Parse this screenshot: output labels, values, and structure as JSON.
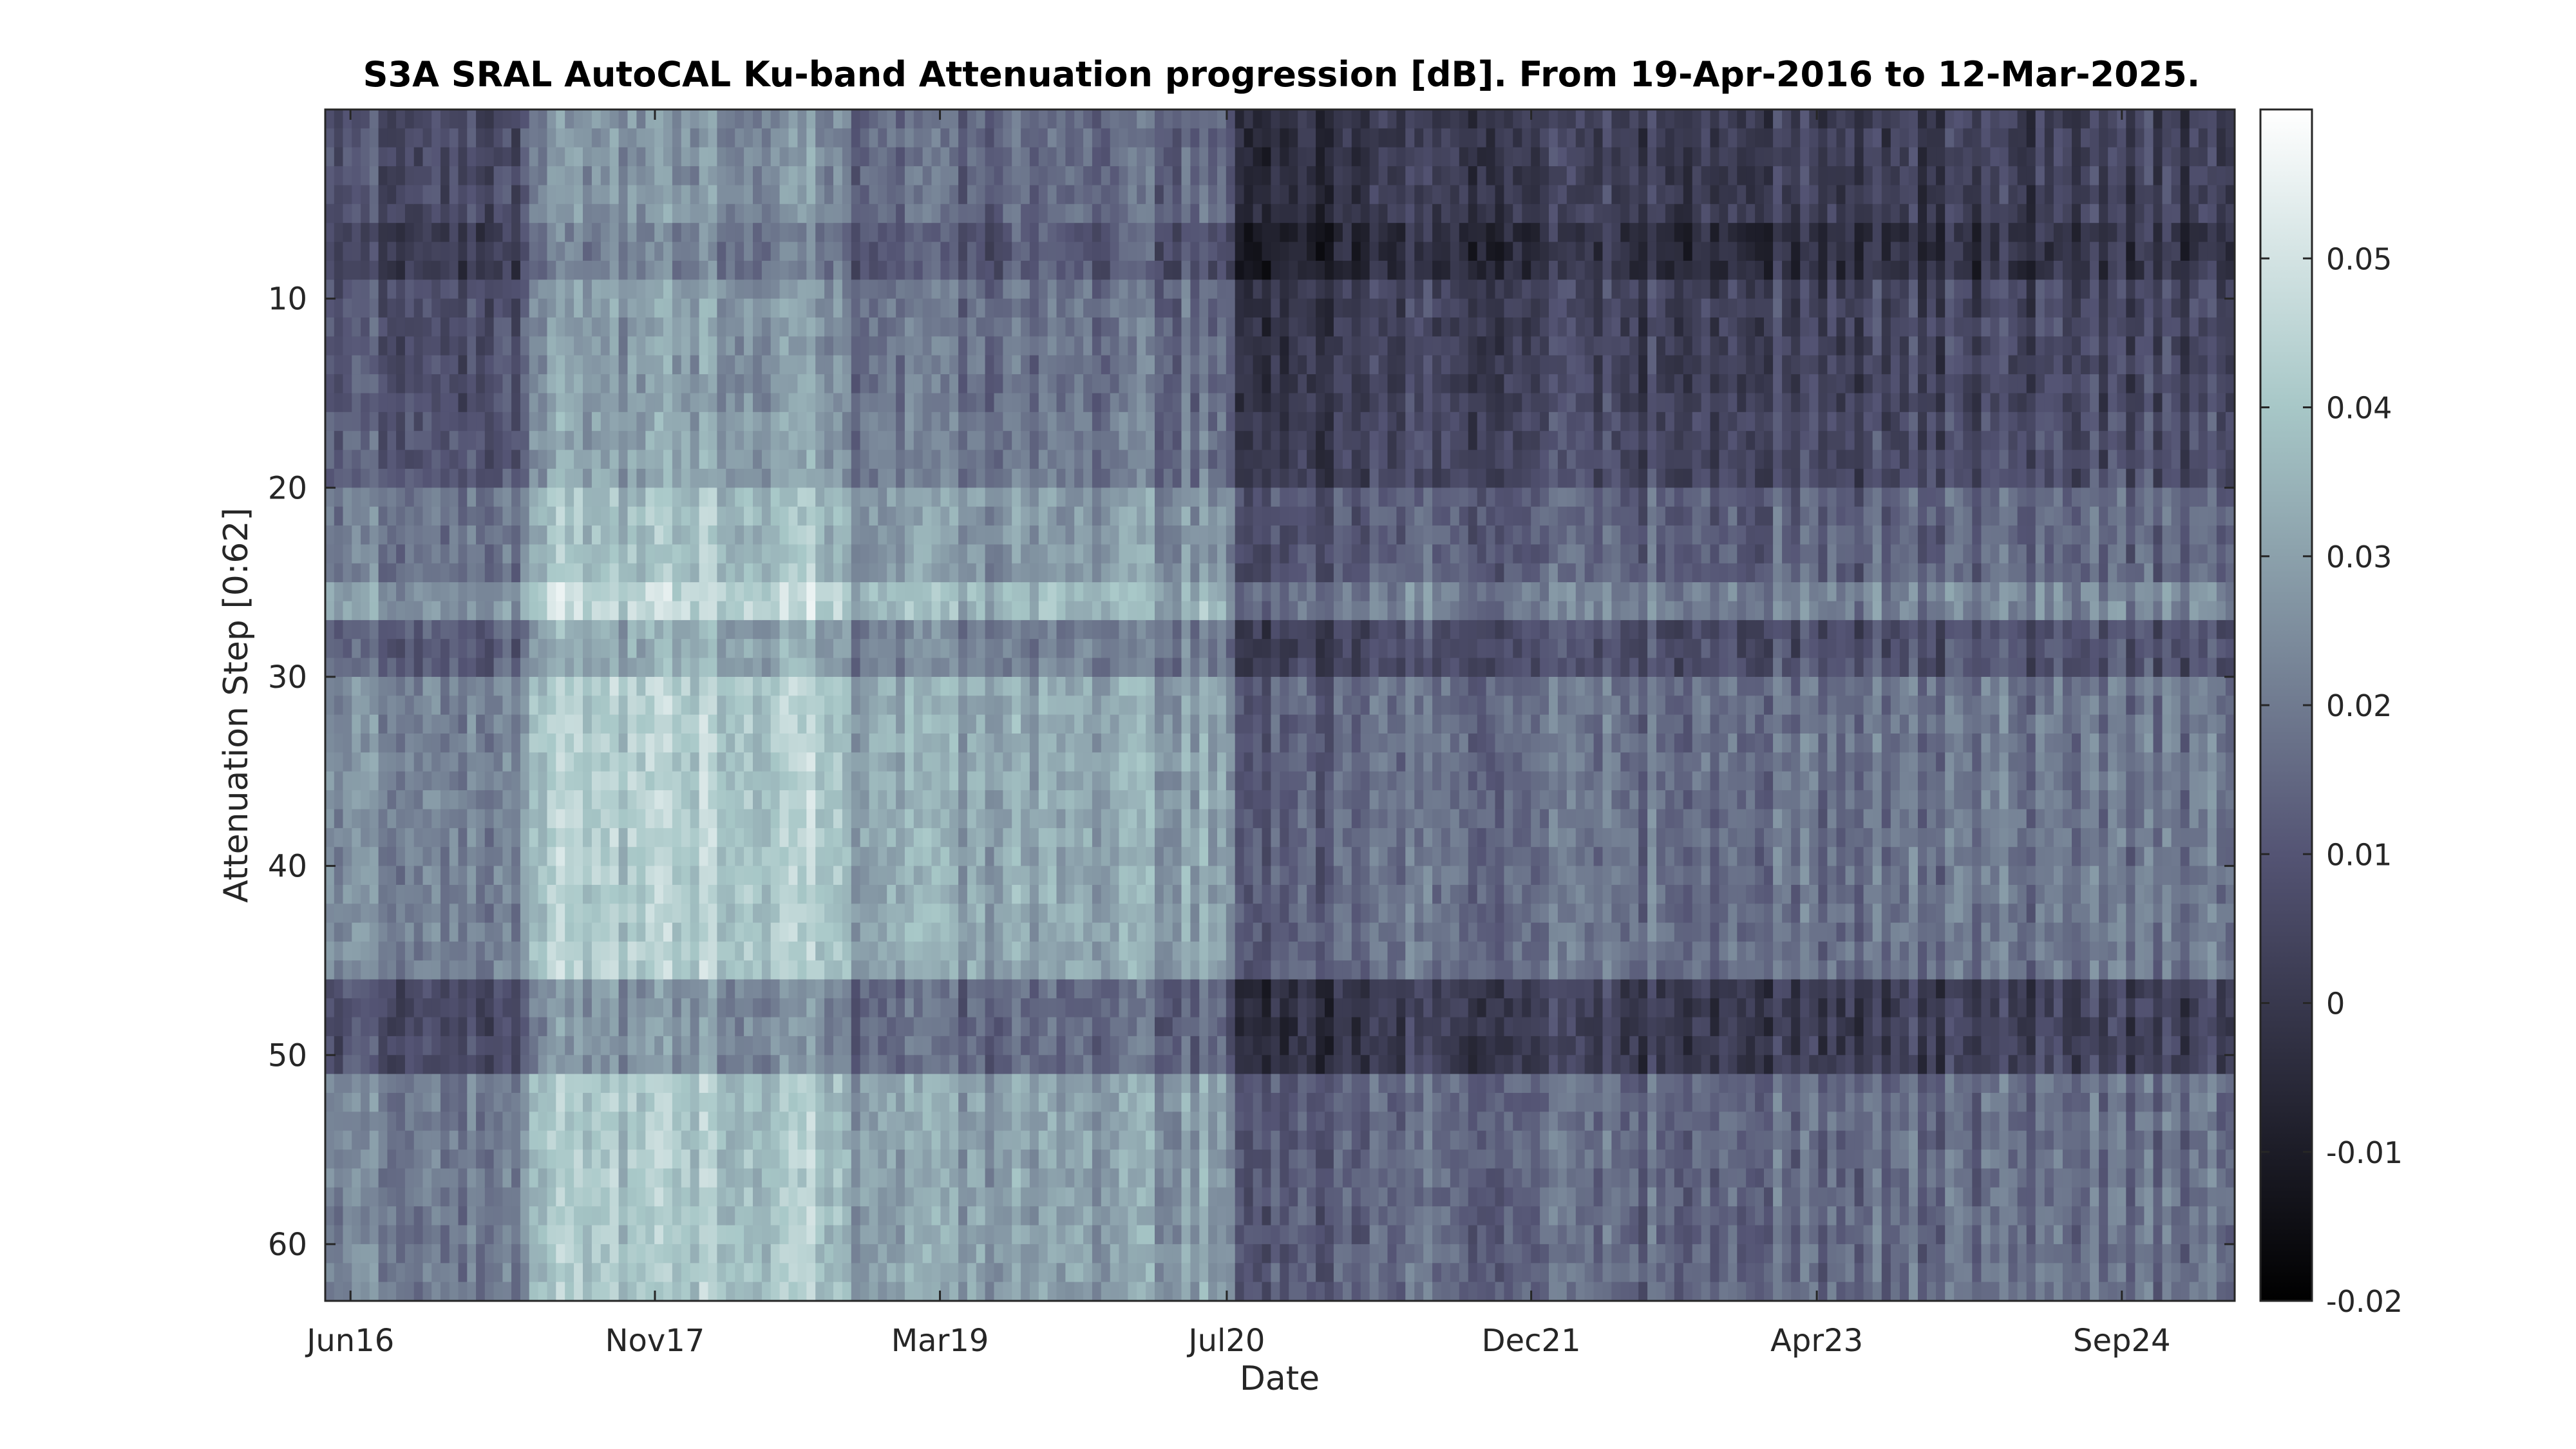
{
  "chart_data": {
    "type": "heatmap",
    "title": "S3A SRAL AutoCAL Ku-band Attenuation progression [dB]. From 19-Apr-2016 to 12-Mar-2025.",
    "xlabel": "Date",
    "ylabel": "Attenuation Step [0:62]",
    "x_range": [
      "2016-04-19",
      "2025-03-12"
    ],
    "x_ticks": [
      {
        "date": "2016-06-01",
        "label": "Jun16"
      },
      {
        "date": "2017-11-01",
        "label": "Nov17"
      },
      {
        "date": "2019-03-01",
        "label": "Mar19"
      },
      {
        "date": "2020-07-01",
        "label": "Jul20"
      },
      {
        "date": "2021-12-01",
        "label": "Dec21"
      },
      {
        "date": "2023-04-01",
        "label": "Apr23"
      },
      {
        "date": "2024-09-01",
        "label": "Sep24"
      }
    ],
    "y_range": [
      0,
      63
    ],
    "y_reversed": true,
    "y_ticks": [
      10,
      20,
      30,
      40,
      50,
      60
    ],
    "colormap": "bone",
    "colorbar": {
      "range": [
        -0.02,
        0.06
      ],
      "ticks": [
        -0.02,
        -0.01,
        0,
        0.01,
        0.02,
        0.03,
        0.04,
        0.05
      ]
    },
    "epochs": [
      {
        "start": "2016-04-19",
        "end": "2017-04-01",
        "base_value": 0.014
      },
      {
        "start": "2017-04-01",
        "end": "2018-10-01",
        "base_value": 0.032
      },
      {
        "start": "2018-10-01",
        "end": "2020-07-15",
        "base_value": 0.021
      },
      {
        "start": "2020-07-15",
        "end": "2021-03-01",
        "base_value": 0.004
      },
      {
        "start": "2021-03-01",
        "end": "2023-01-01",
        "base_value": 0.008
      },
      {
        "start": "2023-01-01",
        "end": "2025-03-12",
        "base_value": 0.009
      }
    ],
    "step_profile": [
      {
        "steps": [
          0,
          5
        ],
        "offset": -0.006
      },
      {
        "steps": [
          6,
          8
        ],
        "offset": -0.011
      },
      {
        "steps": [
          9,
          15
        ],
        "offset": -0.004
      },
      {
        "steps": [
          16,
          19
        ],
        "offset": -0.002
      },
      {
        "steps": [
          20,
          24
        ],
        "offset": 0.006
      },
      {
        "steps": [
          25,
          26
        ],
        "offset": 0.014
      },
      {
        "steps": [
          27,
          29
        ],
        "offset": 0.0
      },
      {
        "steps": [
          30,
          45
        ],
        "offset": 0.01
      },
      {
        "steps": [
          46,
          50
        ],
        "offset": -0.006
      },
      {
        "steps": [
          51,
          62
        ],
        "offset": 0.008
      }
    ]
  }
}
